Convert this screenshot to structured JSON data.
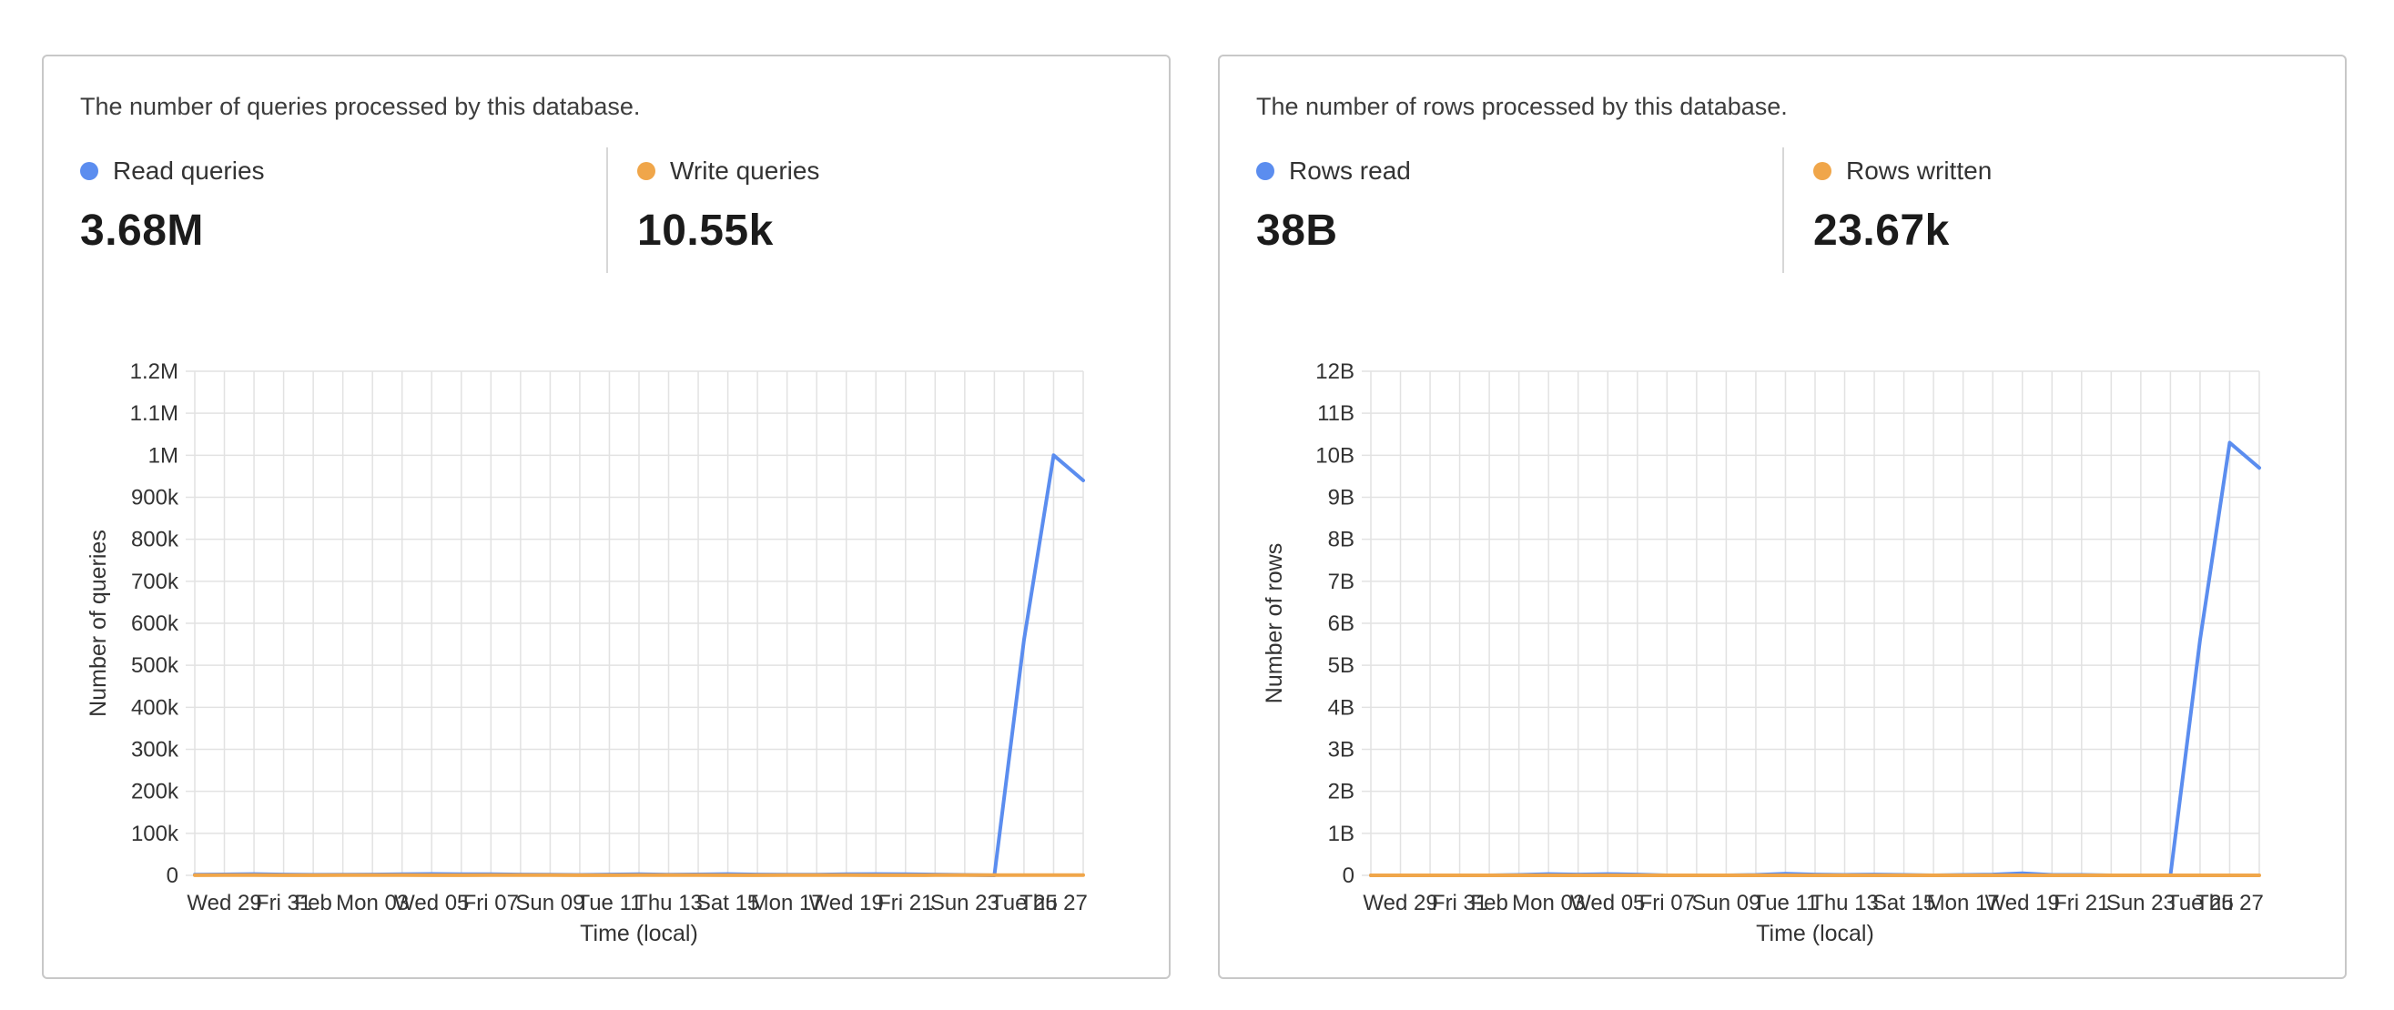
{
  "colors": {
    "read": "#5b8def",
    "write": "#f0a64a",
    "grid": "#e2e2e2",
    "axis": "#333333"
  },
  "cards": [
    {
      "description": "The number of queries processed by this database.",
      "metrics": [
        {
          "label": "Read queries",
          "value": "3.68M",
          "color": "#5b8def"
        },
        {
          "label": "Write queries",
          "value": "10.55k",
          "color": "#f0a64a"
        }
      ]
    },
    {
      "description": "The number of rows processed by this database.",
      "metrics": [
        {
          "label": "Rows read",
          "value": "38B",
          "color": "#5b8def"
        },
        {
          "label": "Rows written",
          "value": "23.67k",
          "color": "#f0a64a"
        }
      ]
    }
  ],
  "chart_data": [
    {
      "type": "line",
      "title": "",
      "xlabel": "Time (local)",
      "ylabel": "Number of queries",
      "ylim": [
        0,
        1200000
      ],
      "y_ticks": [
        0,
        100000,
        200000,
        300000,
        400000,
        500000,
        600000,
        700000,
        800000,
        900000,
        1000000,
        1100000,
        1200000
      ],
      "y_tick_labels": [
        "0",
        "100k",
        "200k",
        "300k",
        "400k",
        "500k",
        "600k",
        "700k",
        "800k",
        "900k",
        "1M",
        "1.1M",
        "1.2M"
      ],
      "x_days": 31,
      "x_tick_days": [
        1,
        3,
        4,
        6,
        8,
        10,
        12,
        14,
        16,
        18,
        20,
        22,
        24,
        26,
        28,
        29
      ],
      "x_tick_labels": [
        "Wed 29",
        "Fri 31",
        "Feb",
        "Mon 03",
        "Wed 05",
        "Fri 07",
        "Sun 09",
        "Tue 11",
        "Thu 13",
        "Sat 15",
        "Mon 17",
        "Wed 19",
        "Fri 21",
        "Sun 23",
        "Tue 25",
        "Thu 27"
      ],
      "grid": true,
      "legend": "none",
      "series": [
        {
          "name": "Read queries",
          "color": "#5b8def",
          "x": [
            0,
            1,
            2,
            3,
            4,
            5,
            6,
            7,
            8,
            9,
            10,
            11,
            12,
            13,
            14,
            15,
            16,
            17,
            18,
            19,
            20,
            21,
            22,
            23,
            24,
            25,
            26,
            27,
            28,
            29,
            30
          ],
          "y": [
            1500,
            2200,
            3000,
            2000,
            1200,
            1500,
            2000,
            2500,
            3200,
            2800,
            2500,
            2000,
            1500,
            1000,
            2000,
            2500,
            1800,
            2200,
            3000,
            2000,
            1500,
            1800,
            2500,
            3000,
            2500,
            2000,
            1000,
            0,
            560000,
            1000000,
            940000
          ]
        },
        {
          "name": "Write queries",
          "color": "#f0a64a",
          "x": [
            0,
            1,
            2,
            3,
            4,
            5,
            6,
            7,
            8,
            9,
            10,
            11,
            12,
            13,
            14,
            15,
            16,
            17,
            18,
            19,
            20,
            21,
            22,
            23,
            24,
            25,
            26,
            27,
            28,
            29,
            30
          ],
          "y": [
            300,
            400,
            350,
            300,
            300,
            350,
            400,
            350,
            300,
            300,
            350,
            400,
            350,
            300,
            300,
            350,
            400,
            350,
            300,
            300,
            350,
            400,
            350,
            300,
            300,
            350,
            400,
            400,
            400,
            400,
            400
          ]
        }
      ]
    },
    {
      "type": "line",
      "title": "",
      "xlabel": "Time (local)",
      "ylabel": "Number of rows",
      "ylim": [
        0,
        12000000000
      ],
      "y_ticks": [
        0,
        1000000000,
        2000000000,
        3000000000,
        4000000000,
        5000000000,
        6000000000,
        7000000000,
        8000000000,
        9000000000,
        10000000000,
        11000000000,
        12000000000
      ],
      "y_tick_labels": [
        "0",
        "1B",
        "2B",
        "3B",
        "4B",
        "5B",
        "6B",
        "7B",
        "8B",
        "9B",
        "10B",
        "11B",
        "12B"
      ],
      "x_days": 31,
      "x_tick_days": [
        1,
        3,
        4,
        6,
        8,
        10,
        12,
        14,
        16,
        18,
        20,
        22,
        24,
        26,
        28,
        29
      ],
      "x_tick_labels": [
        "Wed 29",
        "Fri 31",
        "Feb",
        "Mon 03",
        "Wed 05",
        "Fri 07",
        "Sun 09",
        "Tue 11",
        "Thu 13",
        "Sat 15",
        "Mon 17",
        "Wed 19",
        "Fri 21",
        "Sun 23",
        "Tue 25",
        "Thu 27"
      ],
      "grid": true,
      "legend": "none",
      "series": [
        {
          "name": "Rows read",
          "color": "#5b8def",
          "x": [
            0,
            1,
            2,
            3,
            4,
            5,
            6,
            7,
            8,
            9,
            10,
            11,
            12,
            13,
            14,
            15,
            16,
            17,
            18,
            19,
            20,
            21,
            22,
            23,
            24,
            25,
            26,
            27,
            28,
            29,
            30
          ],
          "y": [
            0,
            0,
            0,
            0,
            0,
            10000000,
            30000000,
            20000000,
            30000000,
            20000000,
            0,
            0,
            0,
            10000000,
            40000000,
            20000000,
            10000000,
            20000000,
            10000000,
            0,
            10000000,
            20000000,
            50000000,
            10000000,
            10000000,
            0,
            0,
            0,
            5600000000,
            10300000000,
            9700000000
          ]
        },
        {
          "name": "Rows written",
          "color": "#f0a64a",
          "x": [
            0,
            1,
            2,
            3,
            4,
            5,
            6,
            7,
            8,
            9,
            10,
            11,
            12,
            13,
            14,
            15,
            16,
            17,
            18,
            19,
            20,
            21,
            22,
            23,
            24,
            25,
            26,
            27,
            28,
            29,
            30
          ],
          "y": [
            0,
            0,
            0,
            0,
            0,
            0,
            0,
            0,
            0,
            0,
            0,
            0,
            0,
            0,
            0,
            0,
            0,
            0,
            0,
            0,
            0,
            0,
            0,
            0,
            0,
            0,
            0,
            0,
            0,
            0,
            0
          ]
        }
      ]
    }
  ]
}
